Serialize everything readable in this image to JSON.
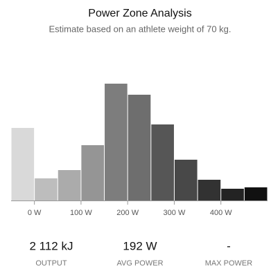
{
  "chart_data": {
    "type": "histogram",
    "title": "Power Zone Analysis",
    "subtitle": "Estimate based on an athlete weight of 70 kg.",
    "bins": [
      -50,
      0,
      50,
      100,
      150,
      200,
      250,
      300,
      350,
      400,
      450,
      500
    ],
    "values": [
      105,
      32,
      44,
      80,
      169,
      153,
      110,
      59,
      30,
      17,
      19
    ],
    "colors": [
      "#d9d9d9",
      "#bdbdbd",
      "#ababab",
      "#959595",
      "#7d7d7d",
      "#6e6e6e",
      "#565656",
      "#484848",
      "#323232",
      "#232323",
      "#111111"
    ],
    "xlim": [
      -50,
      500
    ],
    "ylim": [
      0,
      180
    ],
    "xticks": [
      {
        "value": 0,
        "label": "0 W"
      },
      {
        "value": 100,
        "label": "100 W"
      },
      {
        "value": 200,
        "label": "200 W"
      },
      {
        "value": 300,
        "label": "300 W"
      },
      {
        "value": 400,
        "label": "400 W"
      }
    ]
  },
  "stats": [
    {
      "value": "2 112 kJ",
      "label": "OUTPUT"
    },
    {
      "value": "192 W",
      "label": "AVG POWER"
    },
    {
      "value": "-",
      "label": "MAX POWER"
    }
  ]
}
